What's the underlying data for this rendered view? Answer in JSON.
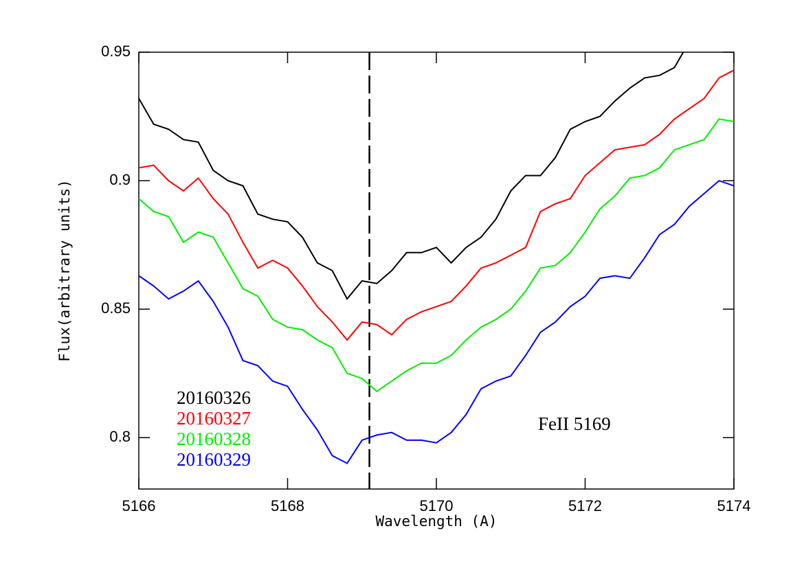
{
  "chart_data": {
    "type": "line",
    "x_label": "Wavelength (A)",
    "y_label": "Flux(arbitrary units)",
    "annotation": "FeII 5169",
    "marker_x": 5169.1,
    "xlim": [
      5166,
      5174
    ],
    "xticks": [
      5166,
      5168,
      5170,
      5172,
      5174
    ],
    "ylim": [
      0.78,
      0.95
    ],
    "yticks": [
      0.8,
      0.85,
      0.9,
      0.95
    ],
    "x": [
      5166,
      5166.2,
      5166.4,
      5166.6,
      5166.8,
      5167,
      5167.2,
      5167.4,
      5167.6,
      5167.8,
      5168,
      5168.2,
      5168.4,
      5168.6,
      5168.8,
      5169,
      5169.2,
      5169.4,
      5169.6,
      5169.8,
      5170,
      5170.2,
      5170.4,
      5170.6,
      5170.8,
      5171,
      5171.2,
      5171.4,
      5171.6,
      5171.8,
      5172,
      5172.2,
      5172.4,
      5172.6,
      5172.8,
      5173,
      5173.2,
      5173.4,
      5173.6,
      5173.8,
      5174
    ],
    "series": [
      {
        "name": "20160326",
        "color": "#000000",
        "values": [
          0.932,
          0.922,
          0.92,
          0.916,
          0.915,
          0.904,
          0.9,
          0.898,
          0.887,
          0.885,
          0.884,
          0.878,
          0.868,
          0.865,
          0.854,
          0.861,
          0.86,
          0.865,
          0.872,
          0.872,
          0.874,
          0.868,
          0.874,
          0.878,
          0.885,
          0.896,
          0.902,
          0.902,
          0.909,
          0.92,
          0.923,
          0.925,
          0.931,
          0.936,
          0.94,
          0.941,
          0.944,
          0.954,
          null,
          null,
          null
        ]
      },
      {
        "name": "20160327",
        "color": "#ff0000",
        "values": [
          0.905,
          0.906,
          0.9,
          0.896,
          0.901,
          0.893,
          0.887,
          0.876,
          0.866,
          0.869,
          0.866,
          0.859,
          0.851,
          0.845,
          0.838,
          0.845,
          0.844,
          0.84,
          0.846,
          0.849,
          0.851,
          0.853,
          0.859,
          0.866,
          0.868,
          0.871,
          0.874,
          0.888,
          0.891,
          0.893,
          0.902,
          0.907,
          0.912,
          0.913,
          0.914,
          0.918,
          0.924,
          0.928,
          0.932,
          0.94,
          0.943
        ]
      },
      {
        "name": "20160328",
        "color": "#00ee00",
        "values": [
          0.893,
          0.888,
          0.886,
          0.876,
          0.88,
          0.878,
          0.868,
          0.858,
          0.855,
          0.846,
          0.843,
          0.842,
          0.838,
          0.835,
          0.825,
          0.823,
          0.818,
          0.822,
          0.826,
          0.829,
          0.829,
          0.832,
          0.838,
          0.843,
          0.846,
          0.85,
          0.857,
          0.866,
          0.867,
          0.872,
          0.88,
          0.889,
          0.894,
          0.901,
          0.902,
          0.905,
          0.912,
          0.914,
          0.916,
          0.924,
          0.923
        ]
      },
      {
        "name": "20160329",
        "color": "#0000ff",
        "values": [
          0.863,
          0.859,
          0.854,
          0.857,
          0.861,
          0.853,
          0.843,
          0.83,
          0.828,
          0.822,
          0.82,
          0.811,
          0.803,
          0.793,
          0.79,
          0.799,
          0.801,
          0.802,
          0.799,
          0.799,
          0.798,
          0.802,
          0.809,
          0.819,
          0.822,
          0.824,
          0.832,
          0.841,
          0.845,
          0.851,
          0.855,
          0.862,
          0.863,
          0.862,
          0.87,
          0.879,
          0.883,
          0.89,
          0.895,
          0.9,
          0.898
        ]
      }
    ]
  }
}
